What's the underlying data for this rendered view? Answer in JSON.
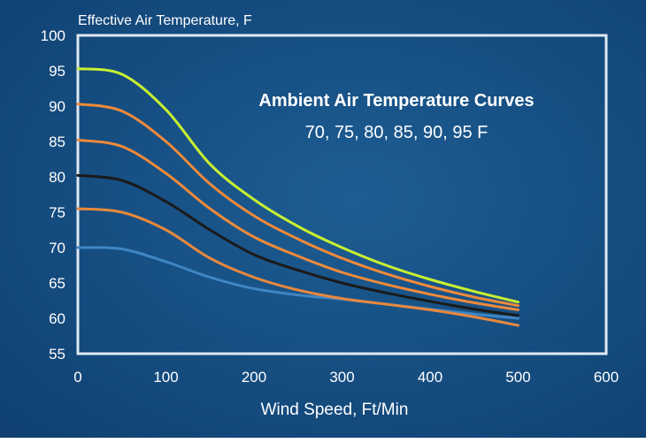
{
  "chart_data": {
    "type": "line",
    "ylabel": "Effective Air Temperature, F",
    "xlabel": "Wind Speed, Ft/Min",
    "annotation": {
      "title": "Ambient Air Temperature Curves",
      "subtitle": "70, 75, 80, 85, 90, 95 F"
    },
    "xlim": [
      0,
      600
    ],
    "ylim": [
      55,
      100
    ],
    "x_ticks": [
      "0",
      "100",
      "200",
      "300",
      "400",
      "500",
      "600"
    ],
    "y_ticks": [
      "55",
      "60",
      "65",
      "70",
      "75",
      "80",
      "85",
      "90",
      "95",
      "100"
    ],
    "grid": false,
    "legend": "none",
    "series": [
      {
        "color": "#3f86c4",
        "points": [
          [
            0,
            70
          ],
          [
            50,
            69.8
          ],
          [
            100,
            68
          ],
          [
            150,
            65.8
          ],
          [
            200,
            64.2
          ],
          [
            250,
            63.3
          ],
          [
            300,
            62.7
          ],
          [
            350,
            62.0
          ],
          [
            400,
            61.3
          ],
          [
            450,
            60.6
          ],
          [
            500,
            60
          ]
        ]
      },
      {
        "color": "#e8883c",
        "points": [
          [
            0,
            75.5
          ],
          [
            50,
            75
          ],
          [
            100,
            72.5
          ],
          [
            150,
            68.5
          ],
          [
            200,
            65.8
          ],
          [
            250,
            64
          ],
          [
            300,
            62.8
          ],
          [
            350,
            62
          ],
          [
            400,
            61.2
          ],
          [
            450,
            60.2
          ],
          [
            500,
            59
          ]
        ]
      },
      {
        "color": "#1a1a1a",
        "points": [
          [
            0,
            80.2
          ],
          [
            50,
            79.5
          ],
          [
            100,
            76.5
          ],
          [
            150,
            72.5
          ],
          [
            200,
            69
          ],
          [
            250,
            66.8
          ],
          [
            300,
            65
          ],
          [
            350,
            63.6
          ],
          [
            400,
            62.4
          ],
          [
            450,
            61.3
          ],
          [
            500,
            60.4
          ]
        ]
      },
      {
        "color": "#f08a3a",
        "points": [
          [
            0,
            85.2
          ],
          [
            50,
            84.3
          ],
          [
            100,
            80.5
          ],
          [
            150,
            75.5
          ],
          [
            200,
            71.5
          ],
          [
            250,
            68.8
          ],
          [
            300,
            66.5
          ],
          [
            350,
            64.8
          ],
          [
            400,
            63.4
          ],
          [
            450,
            62.2
          ],
          [
            500,
            61.2
          ]
        ]
      },
      {
        "color": "#f08a3a",
        "points": [
          [
            0,
            90.3
          ],
          [
            50,
            89.3
          ],
          [
            100,
            85
          ],
          [
            150,
            79
          ],
          [
            200,
            74.5
          ],
          [
            250,
            71.2
          ],
          [
            300,
            68.5
          ],
          [
            350,
            66.3
          ],
          [
            400,
            64.5
          ],
          [
            450,
            63
          ],
          [
            500,
            61.8
          ]
        ]
      },
      {
        "color": "#c8f030",
        "points": [
          [
            0,
            95.3
          ],
          [
            50,
            94.5
          ],
          [
            100,
            89.5
          ],
          [
            150,
            81.8
          ],
          [
            200,
            76.8
          ],
          [
            250,
            73
          ],
          [
            300,
            70
          ],
          [
            350,
            67.5
          ],
          [
            400,
            65.5
          ],
          [
            450,
            63.8
          ],
          [
            500,
            62.3
          ]
        ]
      }
    ]
  },
  "colors": {
    "background": "#134a7e",
    "axis": "#dfe9f3",
    "text": "#ffffff"
  }
}
